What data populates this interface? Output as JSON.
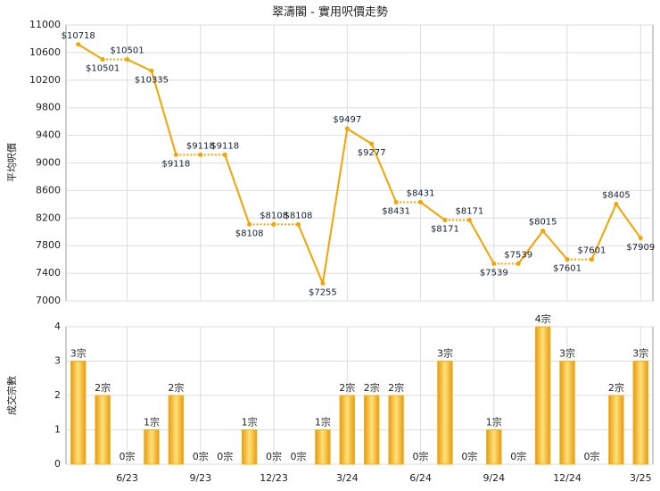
{
  "chart_data": [
    {
      "type": "line",
      "title": "翠濤閣 - 實用呎價走勢",
      "y_label": "平均呎價",
      "color": "#f5a300",
      "grid": true,
      "values": [
        10718,
        10501,
        10501,
        10335,
        9118,
        9118,
        9118,
        8108,
        8108,
        8108,
        7255,
        9497,
        9277,
        8431,
        8431,
        8171,
        8171,
        7539,
        7539,
        8015,
        7601,
        7601,
        8405,
        7909
      ],
      "value_labels": [
        "$10718",
        "$10501",
        "$10501",
        "$10335",
        "$9118",
        "$9118",
        "$9118",
        "$8108",
        "$8108",
        "$8108",
        "$7255",
        "$9497",
        "$9277",
        "$8431",
        "$8431",
        "$8171",
        "$8171",
        "$7539",
        "$7539",
        "$8015",
        "$7601",
        "$7601",
        "$8405",
        "$7909"
      ],
      "ylim": [
        7000,
        11000
      ],
      "yticks": [
        7000,
        7400,
        7800,
        8200,
        8600,
        9000,
        9400,
        9800,
        10200,
        10600,
        11000
      ]
    },
    {
      "type": "bar",
      "y_label": "成交宗數",
      "color": "#f0b020",
      "grid": true,
      "categories": [
        null,
        null,
        "6/23",
        null,
        null,
        "9/23",
        null,
        null,
        "12/23",
        null,
        null,
        "3/24",
        null,
        null,
        "6/24",
        null,
        null,
        "9/24",
        null,
        null,
        "12/24",
        null,
        null,
        "3/25"
      ],
      "values": [
        3,
        2,
        0,
        1,
        2,
        0,
        0,
        1,
        0,
        0,
        1,
        2,
        2,
        2,
        0,
        3,
        0,
        1,
        0,
        4,
        3,
        0,
        2,
        3
      ],
      "value_labels": [
        "3宗",
        "2宗",
        "0宗",
        "1宗",
        "2宗",
        "0宗",
        "0宗",
        "1宗",
        "0宗",
        "0宗",
        "1宗",
        "2宗",
        "2宗",
        "2宗",
        "0宗",
        "3宗",
        "0宗",
        "1宗",
        "0宗",
        "4宗",
        "3宗",
        "0宗",
        "2宗",
        "3宗"
      ],
      "ylim": [
        0,
        4
      ],
      "yticks": [
        0,
        1,
        2,
        3,
        4
      ]
    }
  ]
}
